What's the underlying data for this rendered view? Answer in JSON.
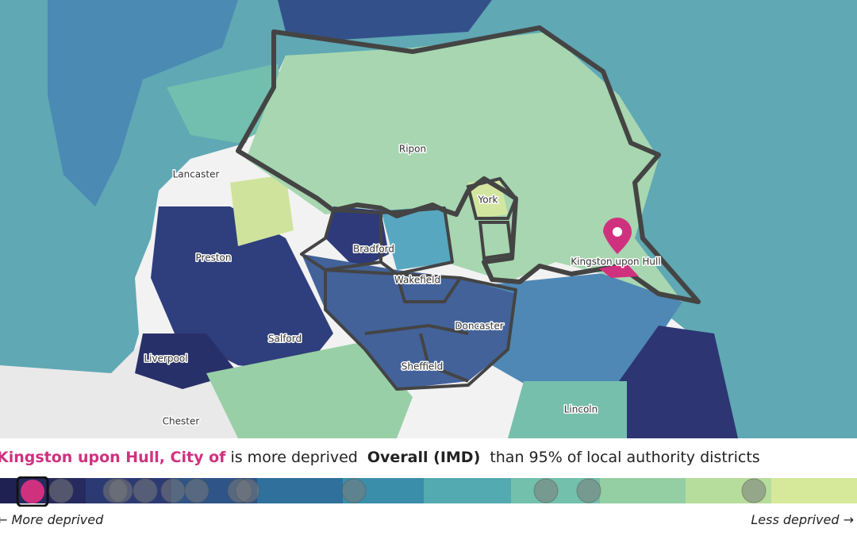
{
  "map": {
    "places": [
      "Ripon",
      "Lancaster",
      "York",
      "Preston",
      "Bradford",
      "Wakefield",
      "Kingston upon Hull",
      "Salford",
      "Doncaster",
      "Liverpool",
      "Sheffield",
      "Lincoln",
      "Chester"
    ]
  },
  "summary": {
    "area": "Kingston upon Hull, City of",
    "phrase": "is more deprived",
    "measure": "Overall (IMD)",
    "comparison": "than 95% of local authority districts"
  },
  "scale": {
    "more": "← More deprived",
    "less": "Less deprived →"
  }
}
